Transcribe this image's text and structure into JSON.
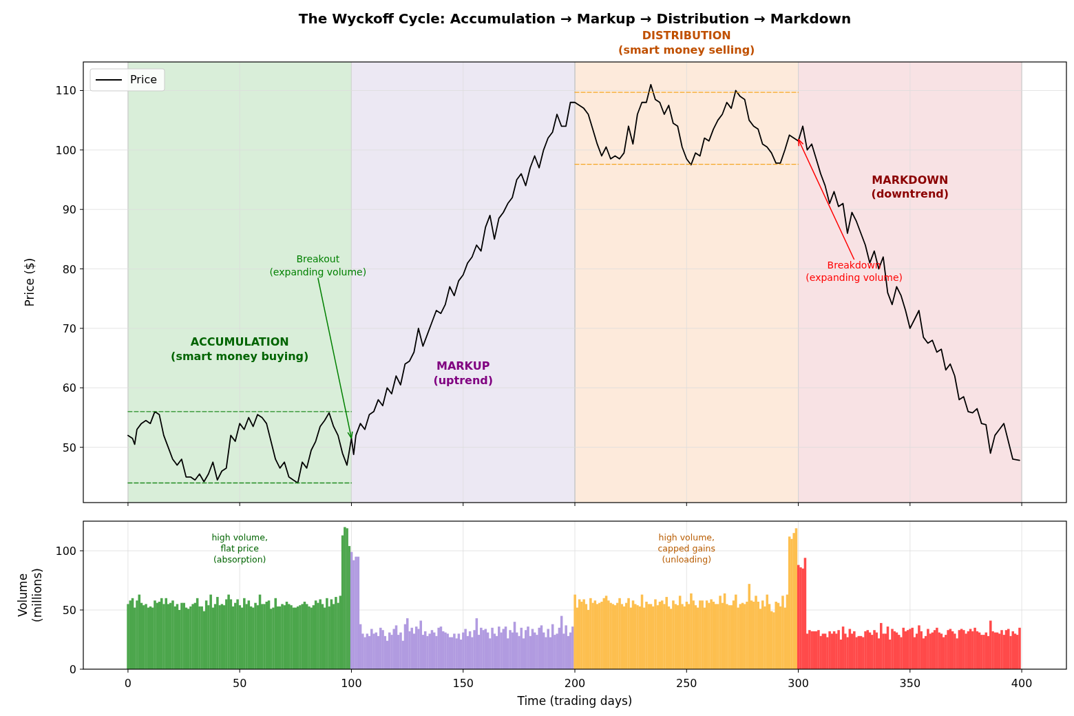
{
  "chart_data": [
    {
      "type": "line",
      "title": "The Wyckoff Cycle: Accumulation → Markup → Distribution → Markdown",
      "ylabel": "Price ($)",
      "xlim": [
        -20,
        420
      ],
      "ylim": [
        40.7,
        114.8
      ],
      "xticks": [
        {
          "value": 0,
          "label": null
        },
        {
          "value": 50,
          "label": null
        },
        {
          "value": 100,
          "label": null
        },
        {
          "value": 150,
          "label": null
        },
        {
          "value": 200,
          "label": null
        },
        {
          "value": 250,
          "label": null
        },
        {
          "value": 300,
          "label": null
        },
        {
          "value": 350,
          "label": null
        },
        {
          "value": 400,
          "label": null
        }
      ],
      "yticks": [
        50,
        60,
        70,
        80,
        90,
        100,
        110
      ],
      "tick_labels": "y",
      "grid": true,
      "legend": "top left",
      "line_style": "solid",
      "marker": "none",
      "bands": [
        {
          "axis": "x",
          "from": 0,
          "to": 100,
          "color": "#d9eed9"
        },
        {
          "axis": "x",
          "from": 100,
          "to": 200,
          "color": "#ece8f3"
        },
        {
          "axis": "x",
          "from": 200,
          "to": 300,
          "color": "#fdeadb"
        },
        {
          "axis": "x",
          "from": 300,
          "to": 400,
          "color": "#f8e2e4"
        }
      ],
      "series": [
        {
          "name": "Price",
          "color": "#000000",
          "x": [
            0,
            2,
            3,
            4,
            6,
            8,
            10,
            12,
            14,
            16,
            18,
            20,
            22,
            24,
            26,
            28,
            30,
            32,
            34,
            36,
            38,
            40,
            42,
            44,
            46,
            48,
            50,
            52,
            54,
            56,
            58,
            60,
            62,
            64,
            66,
            68,
            70,
            72,
            74,
            76,
            78,
            80,
            82,
            84,
            86,
            88,
            90,
            92,
            94,
            96,
            98,
            100,
            101,
            102,
            104,
            106,
            108,
            110,
            112,
            114,
            116,
            118,
            120,
            122,
            124,
            126,
            128,
            130,
            132,
            134,
            136,
            138,
            140,
            142,
            144,
            146,
            148,
            150,
            152,
            154,
            156,
            158,
            160,
            162,
            164,
            166,
            168,
            170,
            172,
            174,
            176,
            178,
            180,
            182,
            184,
            186,
            188,
            190,
            192,
            194,
            196,
            198,
            200,
            202,
            204,
            206,
            208,
            210,
            212,
            214,
            216,
            218,
            220,
            222,
            224,
            226,
            228,
            230,
            232,
            234,
            236,
            238,
            240,
            242,
            244,
            246,
            248,
            250,
            252,
            254,
            256,
            258,
            260,
            262,
            264,
            266,
            268,
            270,
            272,
            274,
            276,
            278,
            280,
            282,
            284,
            286,
            288,
            290,
            292,
            294,
            296,
            298,
            300,
            302,
            304,
            306,
            308,
            310,
            312,
            314,
            316,
            318,
            320,
            322,
            324,
            326,
            328,
            330,
            332,
            334,
            336,
            338,
            340,
            342,
            344,
            346,
            348,
            350,
            352,
            354,
            356,
            358,
            360,
            362,
            364,
            366,
            368,
            370,
            372,
            374,
            376,
            378,
            380,
            382,
            384,
            386,
            388,
            390,
            392,
            394,
            396,
            399
          ],
          "values": [
            52,
            51.5,
            50.5,
            53,
            54,
            54.5,
            54,
            56,
            55.5,
            52,
            50,
            48,
            47,
            48,
            45,
            45,
            44.5,
            45.5,
            44.2,
            45.5,
            47.5,
            44.5,
            46,
            46.5,
            52,
            51,
            54,
            53,
            55,
            53.5,
            55.5,
            55,
            54,
            51,
            48,
            46.5,
            47.5,
            45,
            44.5,
            44,
            47.5,
            46.5,
            49.5,
            51,
            53.5,
            54.5,
            55.8,
            53.5,
            52,
            49,
            47,
            51.5,
            48.8,
            52,
            54,
            53,
            55.5,
            56,
            58,
            57,
            60,
            59,
            62,
            60.5,
            64,
            64.5,
            66,
            70,
            67,
            69,
            71,
            73,
            72.5,
            74,
            77,
            75.5,
            78,
            79,
            81,
            82,
            84,
            83,
            87,
            89,
            85,
            88.5,
            89.5,
            91,
            92,
            95,
            96,
            94,
            97,
            99,
            97,
            100,
            102,
            103,
            106,
            104,
            104,
            108,
            108,
            107.5,
            107,
            106,
            103.5,
            101,
            99,
            100.5,
            98.5,
            99,
            98.5,
            99.5,
            104,
            101,
            106,
            108,
            108,
            111,
            108.5,
            108,
            106,
            107.5,
            104.5,
            104,
            100.5,
            98.5,
            97.5,
            99.5,
            99,
            102,
            101.5,
            103.5,
            105,
            106,
            108,
            107,
            110,
            109,
            108.5,
            105,
            104,
            103.5,
            101,
            100.5,
            99.5,
            97.8,
            97.8,
            100,
            102.5,
            102,
            101.5,
            104,
            100,
            101,
            98.5,
            96,
            94,
            91,
            93,
            90.5,
            91,
            86,
            89.5,
            88,
            86,
            84,
            81,
            83,
            80,
            82,
            76,
            74,
            77,
            75.5,
            73,
            70,
            71.5,
            73,
            68.5,
            67.5,
            68,
            66,
            66.5,
            63,
            64,
            62,
            58,
            58.5,
            56,
            55.8,
            56.5,
            54,
            53.8,
            49,
            52,
            53,
            54,
            51,
            48,
            47.8
          ]
        },
        {
          "color": "#228b22",
          "line_style": "dashed",
          "x": [
            0,
            100
          ],
          "values": [
            56,
            56
          ]
        },
        {
          "color": "#228b22",
          "line_style": "dashed",
          "x": [
            0,
            100
          ],
          "values": [
            44,
            44
          ]
        },
        {
          "color": "#f5a623",
          "line_style": "dashed",
          "x": [
            200,
            300
          ],
          "values": [
            109.7,
            109.7
          ]
        },
        {
          "color": "#f5a623",
          "line_style": "dashed",
          "x": [
            200,
            300
          ],
          "values": [
            97.6,
            97.6
          ]
        }
      ],
      "annotations": [
        "ACCUMULATION\n(smart money buying)",
        "MARKUP\n(uptrend)",
        "DISTRIBUTION\n(smart money selling)",
        "MARKDOWN\n(downtrend)",
        {
          "text": "Breakout\n(expanding volume)",
          "x": 100,
          "y": 51.5
        },
        {
          "text": "Breakdown\n(expanding volume)",
          "x": 300,
          "y": 101.8
        }
      ]
    },
    {
      "type": "bar",
      "xlabel": "Time (trading days)",
      "ylabel": "Volume\n(millions)",
      "xlim": [
        -20,
        420
      ],
      "ylim": [
        0,
        125
      ],
      "xticks": [
        0,
        50,
        100,
        150,
        200,
        250,
        300,
        350,
        400
      ],
      "yticks": [
        0,
        50,
        100
      ],
      "grid": true,
      "series": [
        {
          "color": "#4ca64c",
          "x": [
            0,
            1,
            2,
            3,
            4,
            5,
            6,
            7,
            8,
            9,
            10,
            11,
            12,
            13,
            14,
            15,
            16,
            17,
            18,
            19,
            20,
            21,
            22,
            23,
            24,
            25,
            26,
            27,
            28,
            29,
            30,
            31,
            32,
            33,
            34,
            35,
            36,
            37,
            38,
            39,
            40,
            41,
            42,
            43,
            44,
            45,
            46,
            47,
            48,
            49,
            50,
            51,
            52,
            53,
            54,
            55,
            56,
            57,
            58,
            59,
            60,
            61,
            62,
            63,
            64,
            65,
            66,
            67,
            68,
            69,
            70,
            71,
            72,
            73,
            74,
            75,
            76,
            77,
            78,
            79,
            80,
            81,
            82,
            83,
            84,
            85,
            86,
            87,
            88,
            89,
            90,
            91,
            92,
            93,
            94,
            95,
            96,
            97,
            98,
            99
          ],
          "values": [
            55,
            58,
            60,
            52,
            58,
            63,
            56,
            54,
            55,
            52,
            53,
            52,
            58,
            56,
            57,
            60,
            55,
            60,
            55,
            56,
            58,
            53,
            55,
            50,
            56,
            56,
            52,
            51,
            53,
            55,
            56,
            60,
            53,
            53,
            49,
            58,
            54,
            63,
            52,
            55,
            61,
            54,
            55,
            54,
            59,
            63,
            59,
            53,
            56,
            59,
            54,
            52,
            60,
            55,
            58,
            53,
            52,
            56,
            54,
            63,
            55,
            55,
            57,
            58,
            51,
            52,
            60,
            53,
            53,
            55,
            54,
            57,
            55,
            54,
            52,
            52,
            53,
            54,
            55,
            57,
            55,
            53,
            52,
            54,
            58,
            56,
            59,
            55,
            52,
            60,
            53,
            59,
            55,
            61,
            56,
            62,
            113,
            120,
            119,
            104
          ]
        },
        {
          "color": "#b19be0",
          "x": [
            100,
            101,
            102,
            103,
            104,
            105,
            106,
            107,
            108,
            109,
            110,
            111,
            112,
            113,
            114,
            115,
            116,
            117,
            118,
            119,
            120,
            121,
            122,
            123,
            124,
            125,
            126,
            127,
            128,
            129,
            130,
            131,
            132,
            133,
            134,
            135,
            136,
            137,
            138,
            139,
            140,
            141,
            142,
            143,
            144,
            145,
            146,
            147,
            148,
            149,
            150,
            151,
            152,
            153,
            154,
            155,
            156,
            157,
            158,
            159,
            160,
            161,
            162,
            163,
            164,
            165,
            166,
            167,
            168,
            169,
            170,
            171,
            172,
            173,
            174,
            175,
            176,
            177,
            178,
            179,
            180,
            181,
            182,
            183,
            184,
            185,
            186,
            187,
            188,
            189,
            190,
            191,
            192,
            193,
            194,
            195,
            196,
            197,
            198,
            199
          ],
          "values": [
            99,
            92,
            95,
            95,
            38,
            30,
            27,
            30,
            28,
            34,
            30,
            31,
            28,
            35,
            33,
            28,
            24,
            31,
            29,
            34,
            37,
            29,
            31,
            24,
            38,
            43,
            32,
            35,
            30,
            36,
            34,
            41,
            29,
            32,
            28,
            30,
            33,
            31,
            28,
            35,
            36,
            32,
            31,
            30,
            27,
            27,
            30,
            26,
            30,
            25,
            31,
            34,
            28,
            32,
            27,
            33,
            43,
            29,
            35,
            33,
            34,
            31,
            26,
            35,
            30,
            28,
            36,
            31,
            34,
            36,
            26,
            33,
            31,
            40,
            31,
            28,
            35,
            26,
            33,
            36,
            28,
            34,
            31,
            29,
            35,
            37,
            31,
            27,
            34,
            27,
            38,
            29,
            30,
            35,
            45,
            30,
            37,
            28,
            31,
            36
          ]
        },
        {
          "color": "#fdbf4f",
          "x": [
            200,
            201,
            202,
            203,
            204,
            205,
            206,
            207,
            208,
            209,
            210,
            211,
            212,
            213,
            214,
            215,
            216,
            217,
            218,
            219,
            220,
            221,
            222,
            223,
            224,
            225,
            226,
            227,
            228,
            229,
            230,
            231,
            232,
            233,
            234,
            235,
            236,
            237,
            238,
            239,
            240,
            241,
            242,
            243,
            244,
            245,
            246,
            247,
            248,
            249,
            250,
            251,
            252,
            253,
            254,
            255,
            256,
            257,
            258,
            259,
            260,
            261,
            262,
            263,
            264,
            265,
            266,
            267,
            268,
            269,
            270,
            271,
            272,
            273,
            274,
            275,
            276,
            277,
            278,
            279,
            280,
            281,
            282,
            283,
            284,
            285,
            286,
            287,
            288,
            289,
            290,
            291,
            292,
            293,
            294,
            295,
            296,
            297,
            298,
            299
          ],
          "values": [
            63,
            52,
            59,
            57,
            59,
            55,
            50,
            60,
            56,
            58,
            55,
            56,
            57,
            60,
            62,
            58,
            56,
            55,
            54,
            56,
            60,
            55,
            53,
            56,
            60,
            52,
            58,
            55,
            54,
            53,
            63,
            52,
            57,
            55,
            55,
            53,
            59,
            54,
            57,
            58,
            55,
            61,
            53,
            51,
            58,
            55,
            54,
            62,
            55,
            53,
            57,
            55,
            64,
            58,
            54,
            52,
            58,
            58,
            52,
            58,
            56,
            59,
            57,
            55,
            55,
            62,
            56,
            64,
            55,
            54,
            54,
            58,
            63,
            52,
            55,
            56,
            55,
            57,
            72,
            58,
            57,
            62,
            57,
            51,
            58,
            53,
            63,
            55,
            49,
            48,
            57,
            56,
            53,
            62,
            52,
            63,
            112,
            110,
            115,
            119
          ]
        },
        {
          "color": "#ff4a4a",
          "x": [
            300,
            301,
            302,
            303,
            304,
            305,
            306,
            307,
            308,
            309,
            310,
            311,
            312,
            313,
            314,
            315,
            316,
            317,
            318,
            319,
            320,
            321,
            322,
            323,
            324,
            325,
            326,
            327,
            328,
            329,
            330,
            331,
            332,
            333,
            334,
            335,
            336,
            337,
            338,
            339,
            340,
            341,
            342,
            343,
            344,
            345,
            346,
            347,
            348,
            349,
            350,
            351,
            352,
            353,
            354,
            355,
            356,
            357,
            358,
            359,
            360,
            361,
            362,
            363,
            364,
            365,
            366,
            367,
            368,
            369,
            370,
            371,
            372,
            373,
            374,
            375,
            376,
            377,
            378,
            379,
            380,
            381,
            382,
            383,
            384,
            385,
            386,
            387,
            388,
            389,
            390,
            391,
            392,
            393,
            394,
            395,
            396,
            397,
            398,
            399
          ],
          "values": [
            88,
            86,
            85,
            94,
            30,
            33,
            32,
            32,
            32,
            33,
            28,
            30,
            30,
            27,
            32,
            30,
            32,
            30,
            33,
            25,
            36,
            30,
            27,
            34,
            30,
            32,
            27,
            28,
            28,
            27,
            32,
            33,
            31,
            29,
            33,
            31,
            26,
            39,
            30,
            30,
            36,
            25,
            34,
            32,
            31,
            29,
            27,
            35,
            32,
            33,
            34,
            35,
            27,
            30,
            37,
            32,
            26,
            28,
            34,
            30,
            31,
            33,
            35,
            31,
            30,
            27,
            29,
            33,
            34,
            32,
            30,
            26,
            33,
            34,
            33,
            30,
            32,
            34,
            32,
            35,
            32,
            31,
            29,
            29,
            31,
            28,
            41,
            32,
            31,
            31,
            30,
            33,
            29,
            33,
            34,
            28,
            32,
            30,
            29,
            35
          ]
        }
      ],
      "annotations": [
        "high volume,\nflat price\n(absorption)",
        "high volume,\ncapped gains\n(unloading)"
      ]
    }
  ]
}
